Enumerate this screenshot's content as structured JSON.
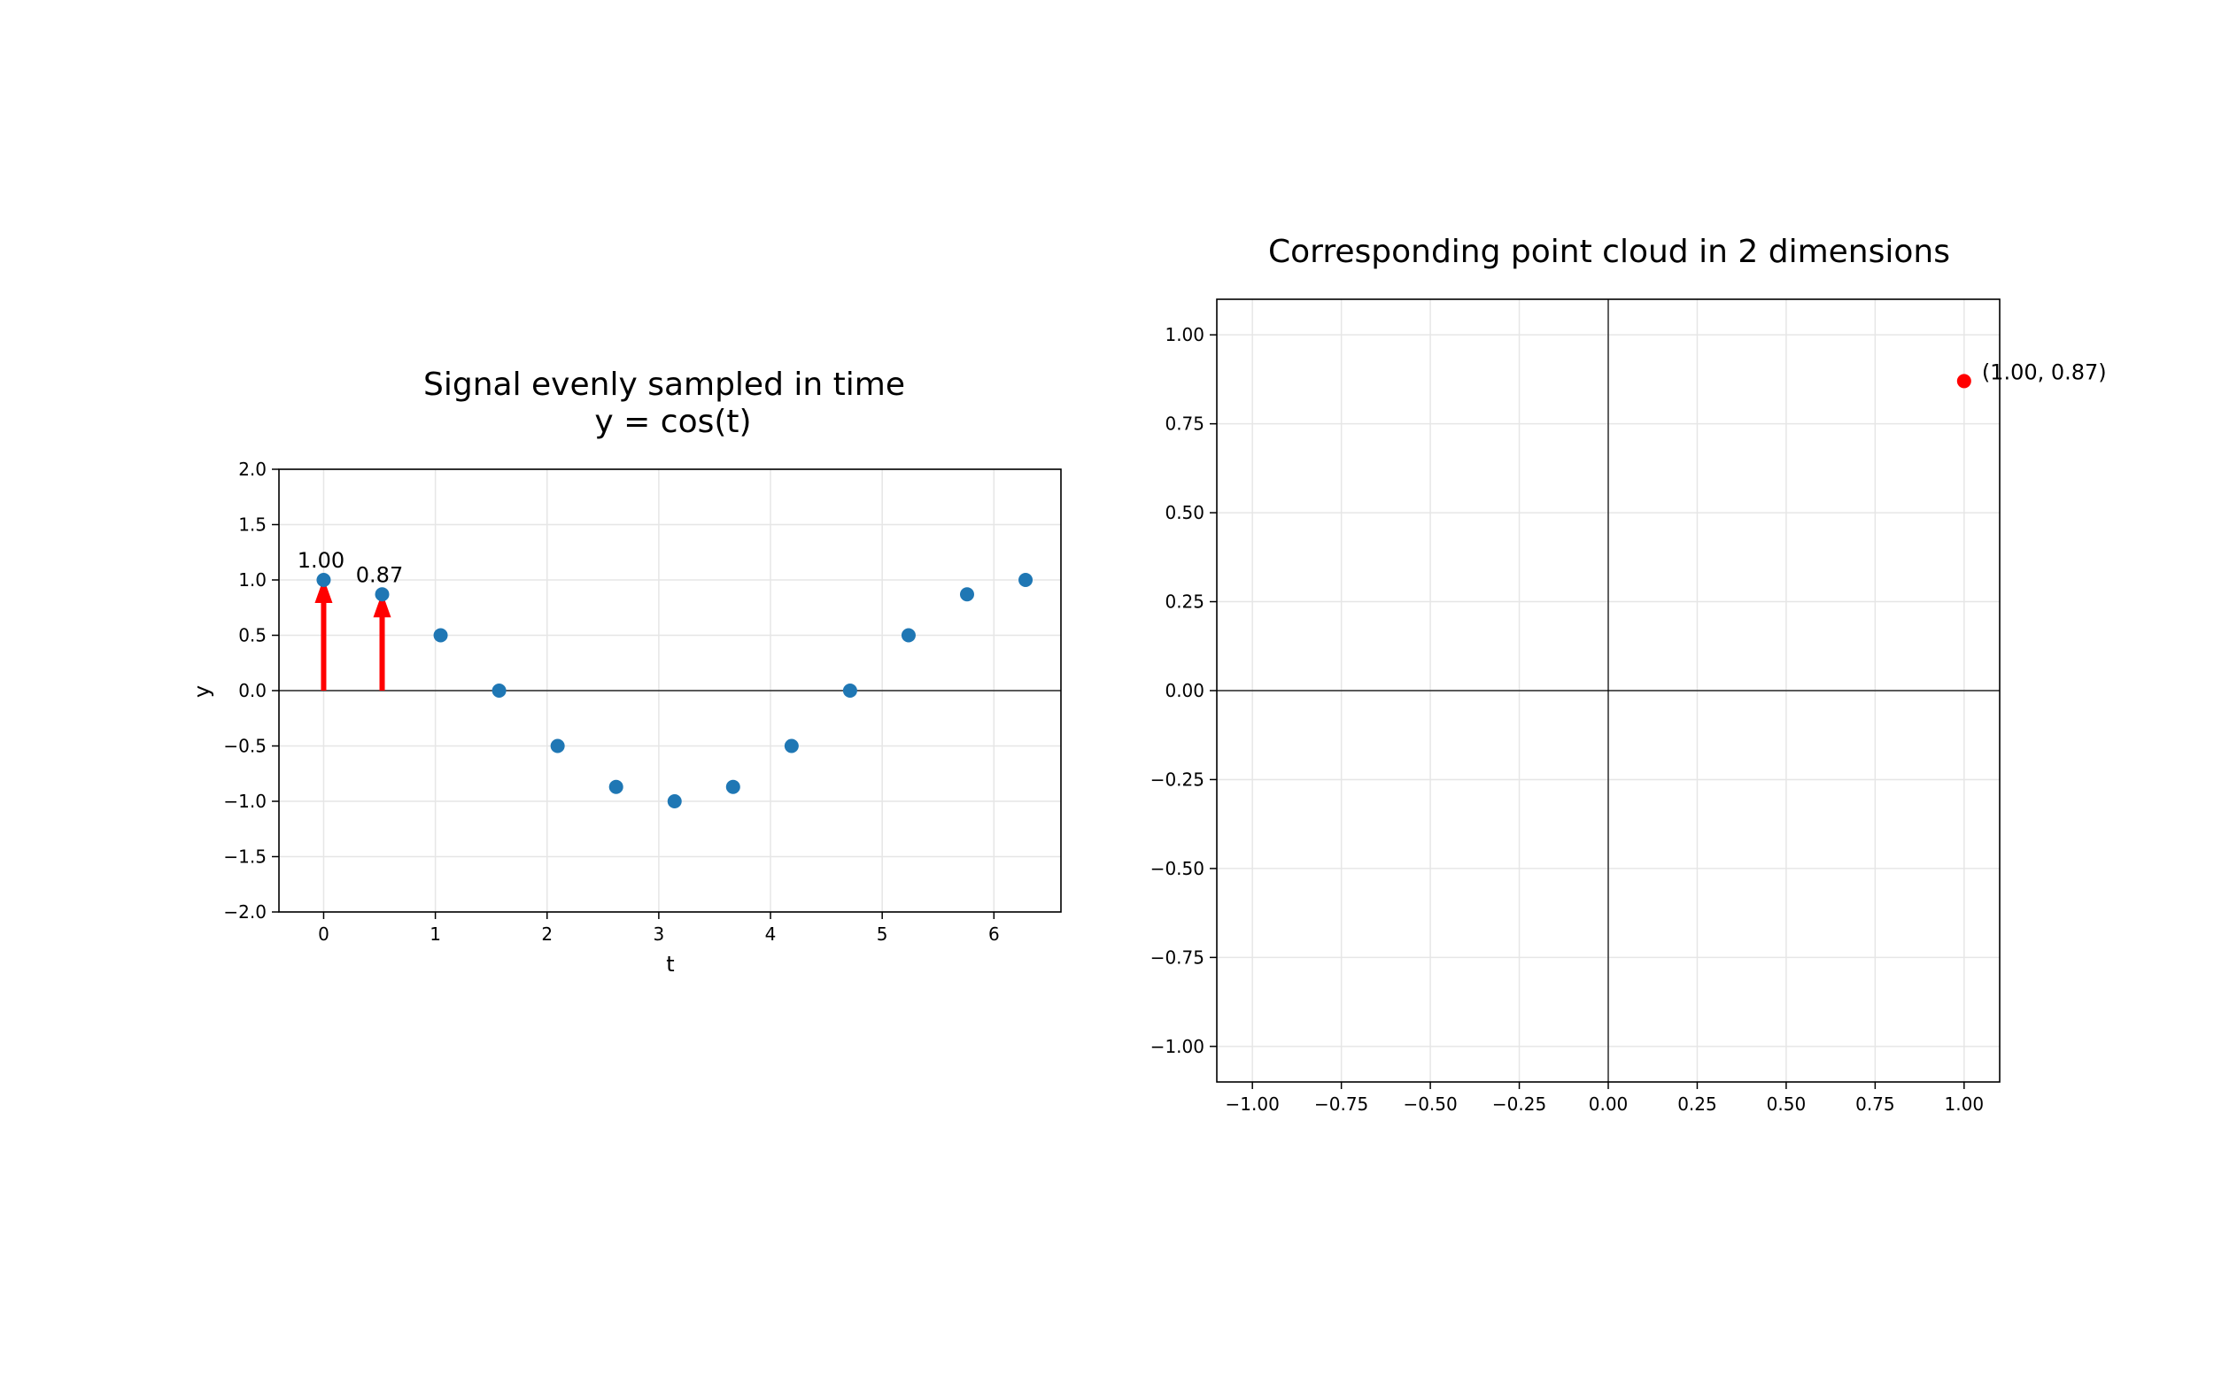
{
  "chart_data": [
    {
      "type": "scatter",
      "title": "Signal evenly sampled in time",
      "subtitle": "y = cos(t)",
      "xlabel": "t",
      "ylabel": "y",
      "xlim": [
        -0.4,
        6.6
      ],
      "ylim": [
        -2.0,
        2.0
      ],
      "xticks": [
        0,
        1,
        2,
        3,
        4,
        5,
        6
      ],
      "xtick_labels": [
        "0",
        "1",
        "2",
        "3",
        "4",
        "5",
        "6"
      ],
      "yticks": [
        -2.0,
        -1.5,
        -1.0,
        -0.5,
        0.0,
        0.5,
        1.0,
        1.5,
        2.0
      ],
      "ytick_labels": [
        "−2.0",
        "−1.5",
        "−1.0",
        "−0.5",
        "0.0",
        "0.5",
        "1.0",
        "1.5",
        "2.0"
      ],
      "grid": true,
      "series": [
        {
          "x": [
            0.0,
            0.5236,
            1.0472,
            1.5708,
            2.0944,
            2.618,
            3.1416,
            3.6652,
            4.1888,
            4.7124,
            5.236,
            5.7596,
            6.2832
          ],
          "y": [
            1.0,
            0.87,
            0.5,
            0.0,
            -0.5,
            -0.87,
            -1.0,
            -0.87,
            -0.5,
            0.0,
            0.5,
            0.87,
            1.0
          ],
          "color": "#1f77b4"
        }
      ],
      "arrows": [
        {
          "x": 0.0,
          "y": 1.0,
          "color": "#ff0000"
        },
        {
          "x": 0.5236,
          "y": 0.87,
          "color": "#ff0000"
        }
      ],
      "annotations": [
        {
          "x": 0.0,
          "y": 1.0,
          "text": "1.00"
        },
        {
          "x": 0.5236,
          "y": 0.87,
          "text": "0.87"
        }
      ]
    },
    {
      "type": "scatter",
      "title": "Corresponding point cloud in 2 dimensions",
      "xlim": [
        -1.1,
        1.1
      ],
      "ylim": [
        -1.1,
        1.1
      ],
      "xticks": [
        -1.0,
        -0.75,
        -0.5,
        -0.25,
        0.0,
        0.25,
        0.5,
        0.75,
        1.0
      ],
      "xtick_labels": [
        "−1.00",
        "−0.75",
        "−0.50",
        "−0.25",
        "0.00",
        "0.25",
        "0.50",
        "0.75",
        "1.00"
      ],
      "yticks": [
        -1.0,
        -0.75,
        -0.5,
        -0.25,
        0.0,
        0.25,
        0.5,
        0.75,
        1.0
      ],
      "ytick_labels": [
        "−1.00",
        "−0.75",
        "−0.50",
        "−0.25",
        "0.00",
        "0.25",
        "0.50",
        "0.75",
        "1.00"
      ],
      "grid": true,
      "points": [
        {
          "x": 1.0,
          "y": 0.87,
          "label": "(1.00, 0.87)",
          "color": "#ff0000"
        }
      ]
    }
  ]
}
